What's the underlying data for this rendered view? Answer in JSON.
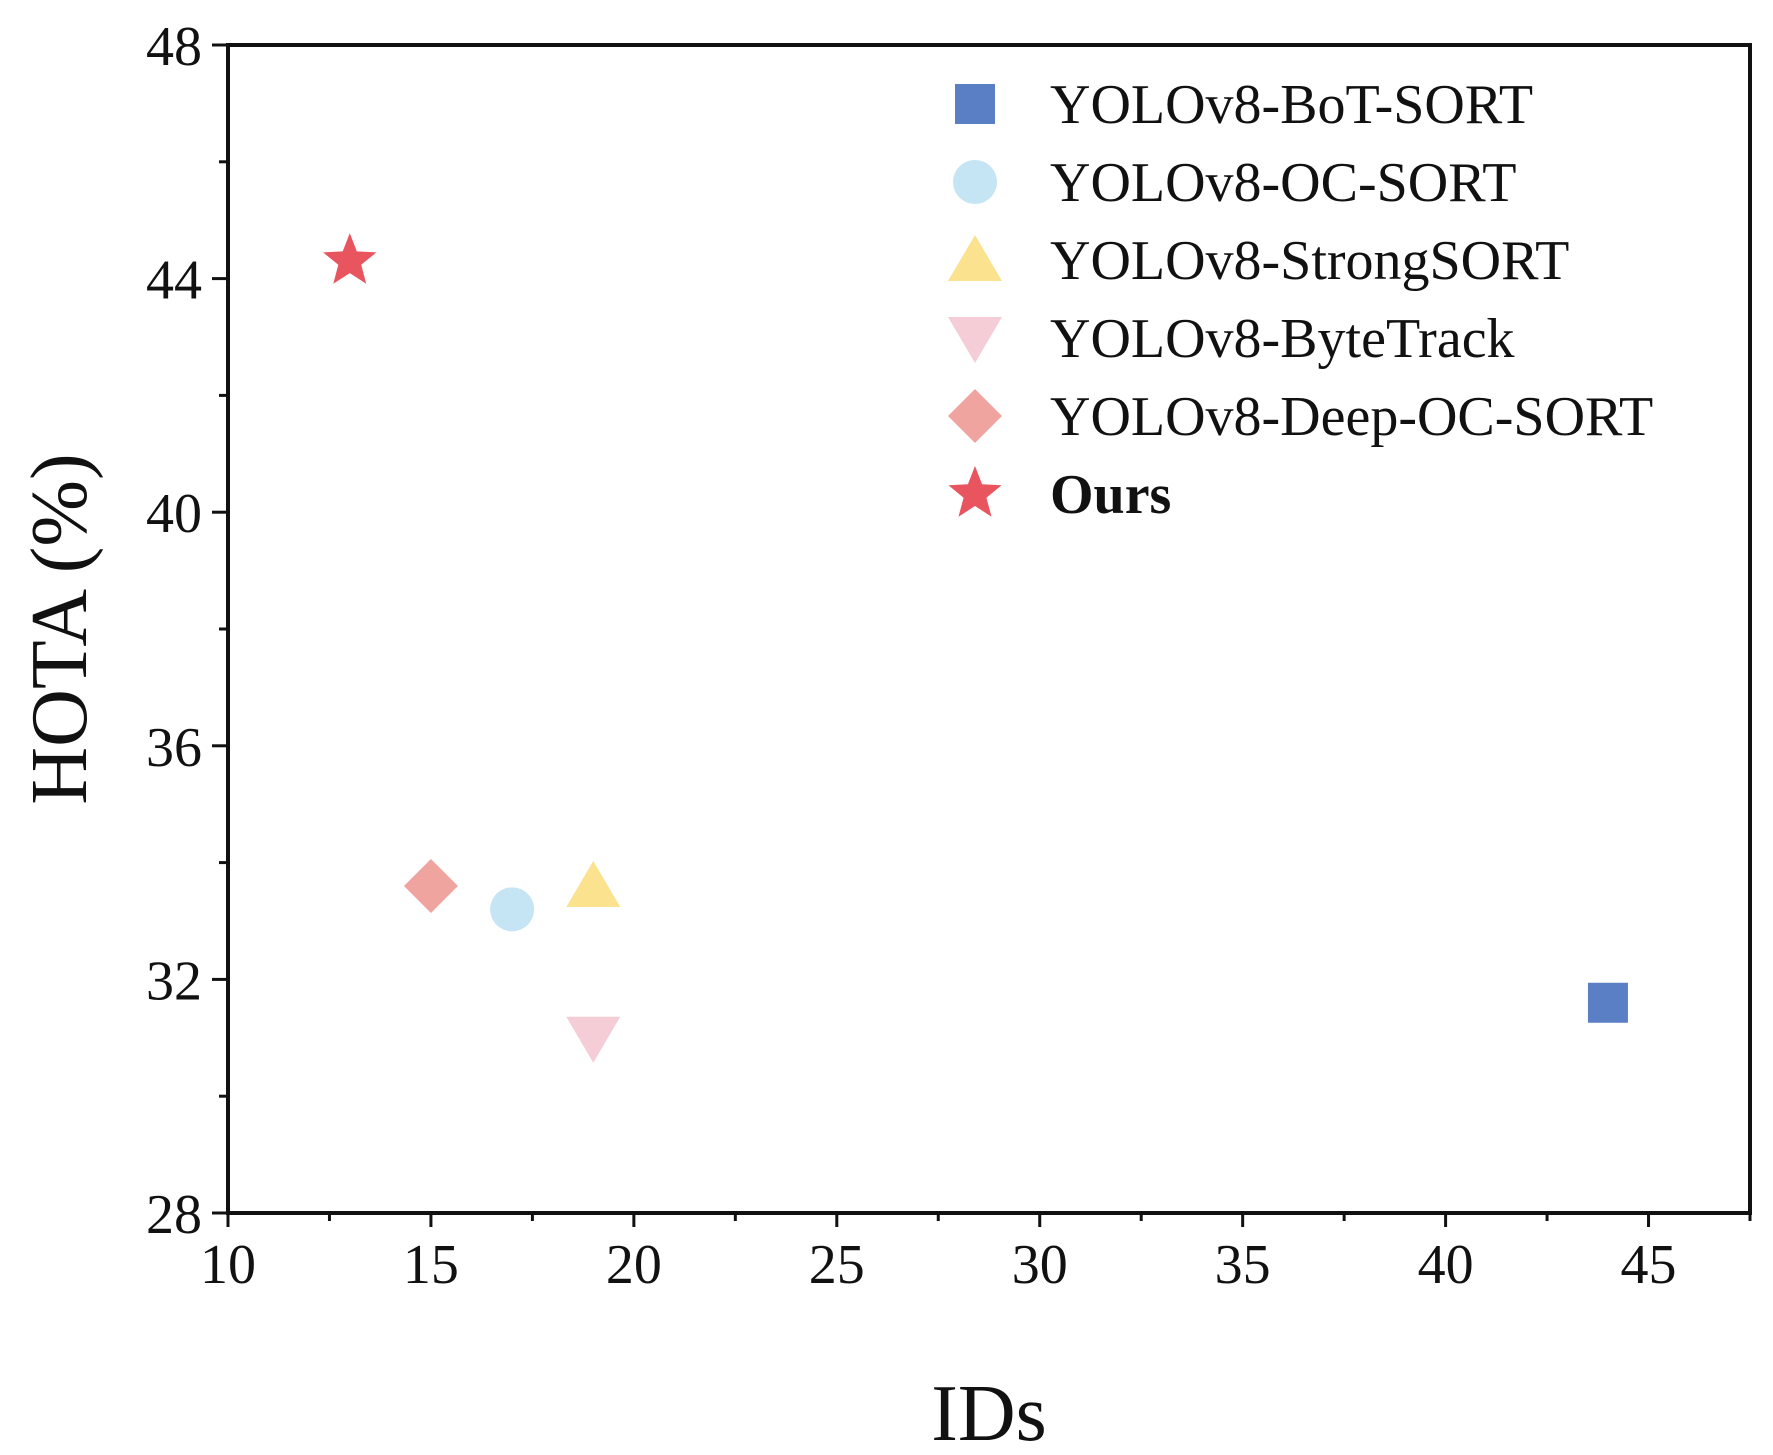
{
  "chart_data": {
    "type": "scatter",
    "title": "",
    "xlabel": "IDs",
    "ylabel": "HOTA (%)",
    "xlim": [
      10,
      47.5
    ],
    "ylim": [
      28,
      48
    ],
    "xticks": [
      10,
      15,
      20,
      25,
      30,
      35,
      40,
      45
    ],
    "yticks": [
      28,
      32,
      36,
      40,
      44,
      48
    ],
    "grid": false,
    "legend_position": "top-right",
    "series": [
      {
        "name": "YOLOv8-BoT-SORT",
        "marker": "square",
        "color": "#5b7fc4",
        "bold": false,
        "x": [
          44
        ],
        "y": [
          31.6
        ]
      },
      {
        "name": "YOLOv8-OC-SORT",
        "marker": "circle",
        "color": "#c5e5f5",
        "bold": false,
        "x": [
          17
        ],
        "y": [
          33.2
        ]
      },
      {
        "name": "YOLOv8-StrongSORT",
        "marker": "triangle-up",
        "color": "#fbe28f",
        "bold": false,
        "x": [
          19
        ],
        "y": [
          33.6
        ]
      },
      {
        "name": "YOLOv8-ByteTrack",
        "marker": "triangle-down",
        "color": "#f5cdd6",
        "bold": false,
        "x": [
          19
        ],
        "y": [
          31.0
        ]
      },
      {
        "name": "YOLOv8-Deep-OC-SORT",
        "marker": "diamond",
        "color": "#f0a4a0",
        "bold": false,
        "x": [
          15
        ],
        "y": [
          33.6
        ]
      },
      {
        "name": "Ours",
        "marker": "star",
        "color": "#e8555e",
        "bold": true,
        "x": [
          13
        ],
        "y": [
          44.3
        ]
      }
    ]
  }
}
